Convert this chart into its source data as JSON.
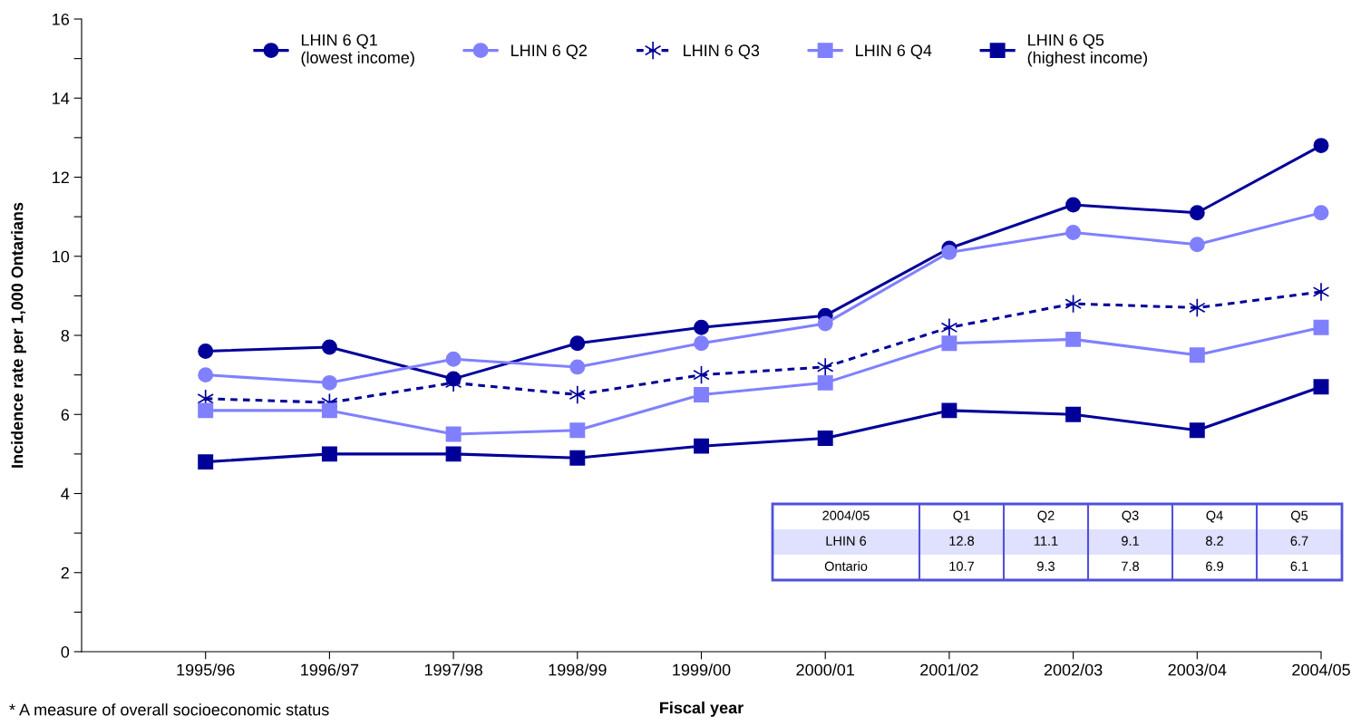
{
  "chart_data": {
    "type": "line",
    "xlabel": "Fiscal year",
    "ylabel": "Incidence rate per 1,000 Ontarians",
    "categories": [
      "1995/96",
      "1996/97",
      "1997/98",
      "1998/99",
      "1999/00",
      "2000/01",
      "2001/02",
      "2002/03",
      "2003/04",
      "2004/05"
    ],
    "series": [
      {
        "name": "LHIN 6 Q1\n(lowest income)",
        "color": "#000099",
        "marker": "circle",
        "line_style": "solid",
        "values": [
          7.6,
          7.7,
          6.9,
          7.8,
          8.2,
          8.5,
          10.2,
          11.3,
          11.1,
          12.8
        ]
      },
      {
        "name": "LHIN 6 Q2",
        "color": "#8080ff",
        "marker": "circle",
        "line_style": "solid",
        "values": [
          7.0,
          6.8,
          7.4,
          7.2,
          7.8,
          8.3,
          10.1,
          10.6,
          10.3,
          11.1
        ]
      },
      {
        "name": "LHIN 6 Q3",
        "color": "#000099",
        "marker": "cross",
        "line_style": "dashed",
        "values": [
          6.4,
          6.3,
          6.8,
          6.5,
          7.0,
          7.2,
          8.2,
          8.8,
          8.7,
          9.1
        ]
      },
      {
        "name": "LHIN 6 Q4",
        "color": "#8080ff",
        "marker": "square",
        "line_style": "solid",
        "values": [
          6.1,
          6.1,
          5.5,
          5.6,
          6.5,
          6.8,
          7.8,
          7.9,
          7.5,
          8.2
        ]
      },
      {
        "name": "LHIN 6 Q5\n(highest income)",
        "color": "#000099",
        "marker": "square",
        "line_style": "solid",
        "values": [
          4.8,
          5.0,
          5.0,
          4.9,
          5.2,
          5.4,
          6.1,
          6.0,
          5.6,
          6.7
        ]
      }
    ],
    "ylim": [
      0,
      16
    ],
    "yticks": [
      0,
      {
        "value": 1,
        "label": null
      },
      2,
      {
        "value": 3,
        "label": null
      },
      4,
      {
        "value": 5,
        "label": null
      },
      6,
      {
        "value": 7,
        "label": null
      },
      8,
      {
        "value": 9,
        "label": null
      },
      10,
      {
        "value": 11,
        "label": null
      },
      12,
      {
        "value": 13,
        "label": null
      },
      14,
      {
        "value": 15,
        "label": null
      },
      16
    ],
    "grid": false,
    "legend": "top",
    "annotations": [
      "* A measure of overall socioeconomic status",
      "2004/05",
      "Q1",
      "Q2",
      "Q3",
      "Q4",
      "Q5",
      "LHIN 6",
      "12.8",
      "11.1",
      "9.1",
      "8.2",
      "6.7",
      "Ontario",
      "10.7",
      "9.3",
      "7.8",
      "6.9",
      "6.1"
    ]
  }
}
